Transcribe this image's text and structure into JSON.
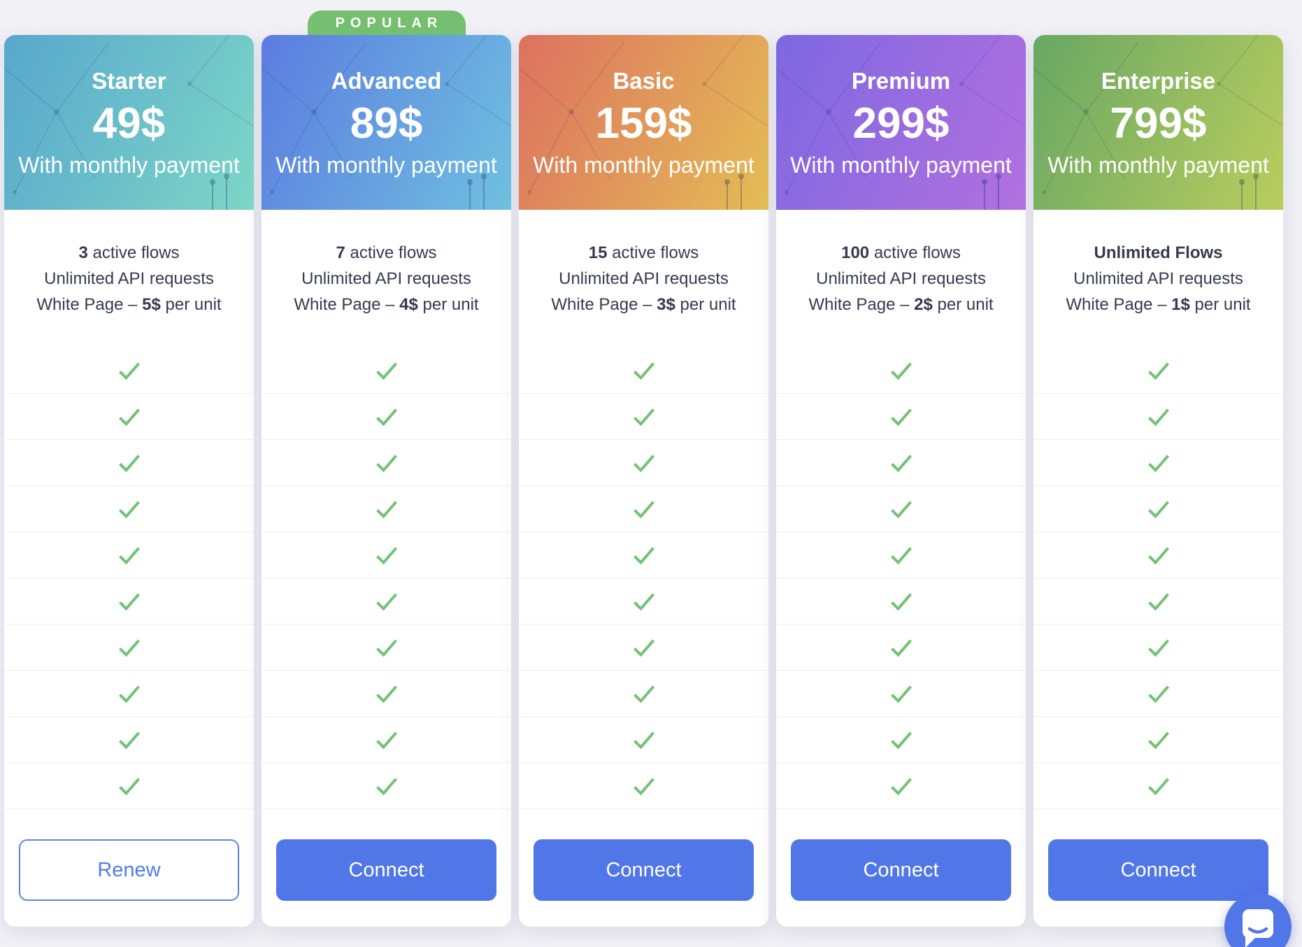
{
  "page": {
    "background": "#f1f1f6"
  },
  "popular_badge": {
    "label": "POPULAR",
    "color": "#74bf70"
  },
  "colors": {
    "check_green": "#74c277",
    "button_blue": "#5176e8",
    "outline_button_border": "#5b82ef",
    "outline_button_text": "#4f7bee",
    "row_border": "#edeff4",
    "text_dark": "#353a50",
    "badge_green": "#74bf70"
  },
  "plans": [
    {
      "name": "Starter",
      "price": "49$",
      "billing": "With monthly payment",
      "gradient": [
        "#58a7cd",
        "#7dd6c6"
      ],
      "popular": false,
      "checks": 10,
      "features": [
        {
          "pre": "",
          "bold": "3",
          "post": " active flows"
        },
        {
          "pre": "Unlimited API requests",
          "bold": "",
          "post": ""
        },
        {
          "pre": "White Page – ",
          "bold": "5$",
          "post": " per unit"
        }
      ],
      "button": {
        "label": "Renew",
        "variant": "outline"
      }
    },
    {
      "name": "Advanced",
      "price": "89$",
      "billing": "With monthly payment",
      "gradient": [
        "#5b7ce0",
        "#6fc0e0"
      ],
      "popular": true,
      "checks": 10,
      "features": [
        {
          "pre": "",
          "bold": "7",
          "post": " active flows"
        },
        {
          "pre": "Unlimited API requests",
          "bold": "",
          "post": ""
        },
        {
          "pre": "White Page – ",
          "bold": "4$",
          "post": " per unit"
        }
      ],
      "button": {
        "label": "Connect",
        "variant": "solid"
      }
    },
    {
      "name": "Basic",
      "price": "159$",
      "billing": "With monthly payment",
      "gradient": [
        "#dd7160",
        "#e4bd55"
      ],
      "popular": false,
      "checks": 10,
      "features": [
        {
          "pre": "",
          "bold": "15",
          "post": " active flows"
        },
        {
          "pre": "Unlimited API requests",
          "bold": "",
          "post": ""
        },
        {
          "pre": "White Page – ",
          "bold": "3$",
          "post": " per unit"
        }
      ],
      "button": {
        "label": "Connect",
        "variant": "solid"
      }
    },
    {
      "name": "Premium",
      "price": "299$",
      "billing": "With monthly payment",
      "gradient": [
        "#7d68e1",
        "#b270e0"
      ],
      "popular": false,
      "checks": 10,
      "features": [
        {
          "pre": "",
          "bold": "100",
          "post": " active flows"
        },
        {
          "pre": "Unlimited API requests",
          "bold": "",
          "post": ""
        },
        {
          "pre": "White Page – ",
          "bold": "2$",
          "post": " per unit"
        }
      ],
      "button": {
        "label": "Connect",
        "variant": "solid"
      }
    },
    {
      "name": "Enterprise",
      "price": "799$",
      "billing": "With monthly payment",
      "gradient": [
        "#68a763",
        "#b9cd5e"
      ],
      "popular": false,
      "checks": 10,
      "features": [
        {
          "pre": "",
          "bold": "Unlimited Flows",
          "post": ""
        },
        {
          "pre": "Unlimited API requests",
          "bold": "",
          "post": ""
        },
        {
          "pre": "White Page – ",
          "bold": "1$",
          "post": " per unit"
        }
      ],
      "button": {
        "label": "Connect",
        "variant": "solid"
      }
    }
  ],
  "chat_widget": {
    "icon": "chat-bubble"
  }
}
